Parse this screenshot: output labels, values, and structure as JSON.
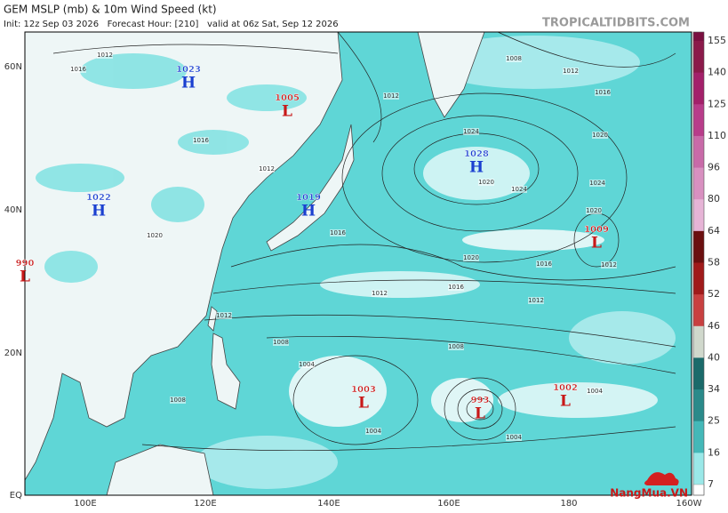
{
  "header": {
    "title": "GEM MSLP (mb) & 10m Wind Speed (kt)",
    "subtitle": "Init: 12z Sep 03 2026   Forecast Hour: [210]   valid at 06z Sat, Sep 12 2026",
    "source": "TROPICALTIDBITS.COM"
  },
  "lat_labels": [
    "60N",
    "40N",
    "20N",
    "EQ"
  ],
  "lon_labels": [
    "100E",
    "120E",
    "140E",
    "160E",
    "180",
    "160W"
  ],
  "centers": [
    {
      "type": "H",
      "pressure": "1023"
    },
    {
      "type": "L",
      "pressure": "1005"
    },
    {
      "type": "H",
      "pressure": "1022"
    },
    {
      "type": "H",
      "pressure": "1019"
    },
    {
      "type": "H",
      "pressure": "1028"
    },
    {
      "type": "L",
      "pressure": "1009"
    },
    {
      "type": "L",
      "pressure": "990"
    },
    {
      "type": "L",
      "pressure": "1003"
    },
    {
      "type": "L",
      "pressure": "993"
    },
    {
      "type": "L",
      "pressure": "1002"
    }
  ],
  "isobar_labels": [
    "1016",
    "1012",
    "1008",
    "1012",
    "1016",
    "1020",
    "1024",
    "1024",
    "1020",
    "1024",
    "1020",
    "1012",
    "1016",
    "1020",
    "1016",
    "1012",
    "1012",
    "1008",
    "1004",
    "1004",
    "1004",
    "1004",
    "1008",
    "1012",
    "1008",
    "1016",
    "1012",
    "1020",
    "1016",
    "1012"
  ],
  "colorbar_labels": [
    "155",
    "140",
    "125",
    "110",
    "96",
    "80",
    "64",
    "58",
    "52",
    "46",
    "40",
    "34",
    "25",
    "16",
    "7"
  ],
  "watermark": "NangMua.VN"
}
